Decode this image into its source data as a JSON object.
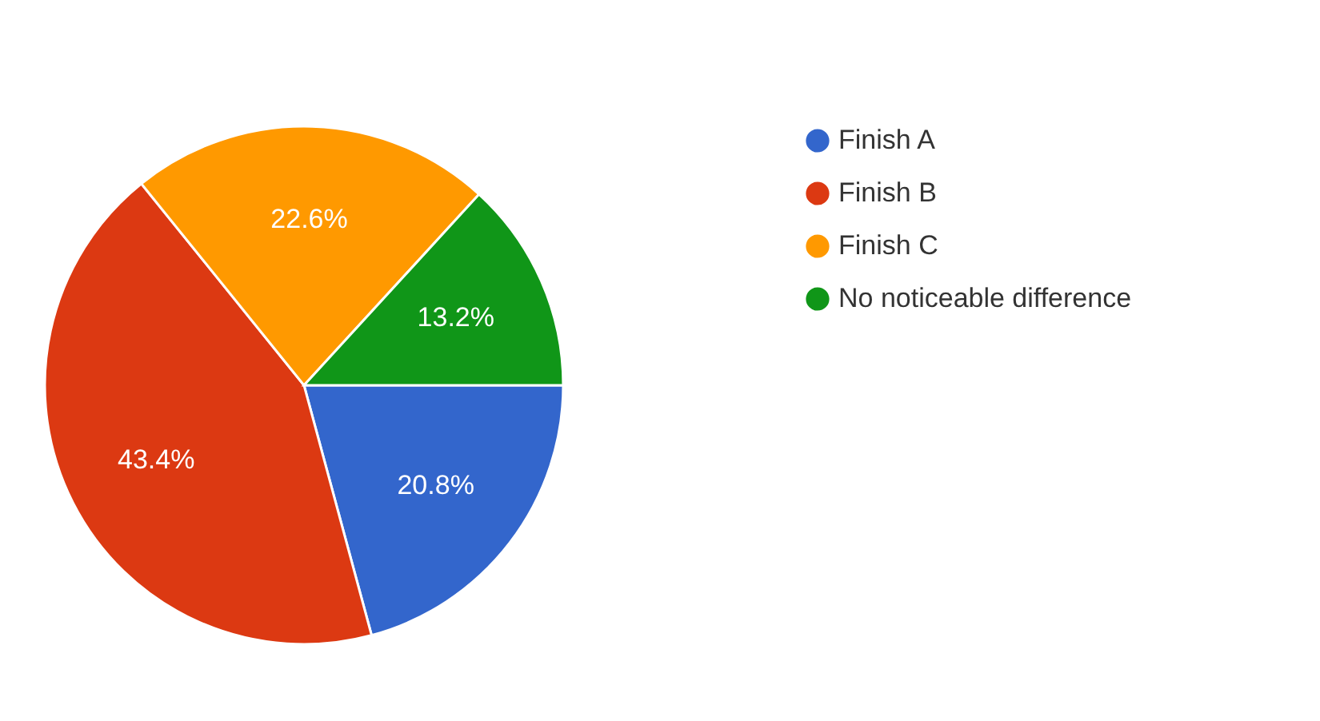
{
  "chart_data": {
    "type": "pie",
    "categories": [
      "Finish A",
      "Finish B",
      "Finish C",
      "No noticeable difference"
    ],
    "values": [
      20.8,
      43.4,
      22.6,
      13.2
    ],
    "colors": [
      "#3366cc",
      "#dc3912",
      "#ff9900",
      "#109618"
    ],
    "value_labels": [
      "20.8%",
      "43.4%",
      "22.6%",
      "13.2%"
    ],
    "legend": "right"
  }
}
